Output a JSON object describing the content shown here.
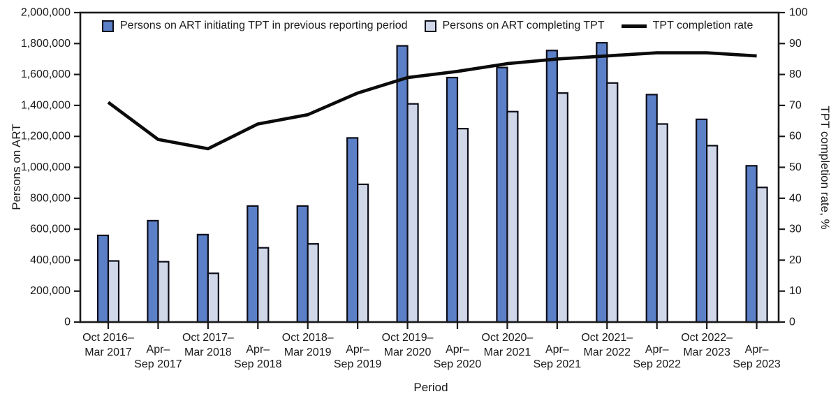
{
  "figure": {
    "xlabel": "Period",
    "ylabel_left": "Persons on ART",
    "ylabel_right": "TPT completion rate, %",
    "legend": {
      "initiating": "Persons on ART initiating TPT in previous reporting period",
      "completing": "Persons on ART completing TPT",
      "rate": "TPT completion rate"
    },
    "colors": {
      "bar_initiating": "#5b80c7",
      "bar_completing": "#cfd7e9",
      "bar_border": "#0d0d1a",
      "rate_line": "#0b0b0b",
      "axis": "#1a1a1a",
      "text": "#1a1a1a",
      "background": "#ffffff"
    }
  },
  "chart_data": {
    "type": "bar",
    "subtype": "grouped-bars-with-right-axis-line",
    "categories": [
      [
        "Oct 2016–",
        "Mar 2017"
      ],
      [
        "Apr–",
        "Sep 2017"
      ],
      [
        "Oct 2017–",
        "Mar 2018"
      ],
      [
        "Apr–",
        "Sep 2018"
      ],
      [
        "Oct 2018–",
        "Mar 2019"
      ],
      [
        "Apr–",
        "Sep 2019"
      ],
      [
        "Oct 2019–",
        "Mar 2020"
      ],
      [
        "Apr–",
        "Sep 2020"
      ],
      [
        "Oct 2020–",
        "Mar 2021"
      ],
      [
        "Apr–",
        "Sep 2021"
      ],
      [
        "Oct 2021–",
        "Mar 2022"
      ],
      [
        "Apr–",
        "Sep 2022"
      ],
      [
        "Oct 2022–",
        "Mar 2023"
      ],
      [
        "Apr–",
        "Sep 2023"
      ]
    ],
    "series": [
      {
        "name": "Persons on ART initiating TPT in previous reporting period",
        "axis": "left",
        "color_key": "bar_initiating",
        "values": [
          560000,
          655000,
          565000,
          750000,
          750000,
          1190000,
          1785000,
          1580000,
          1645000,
          1755000,
          1805000,
          1470000,
          1310000,
          1010000
        ]
      },
      {
        "name": "Persons on ART completing TPT",
        "axis": "left",
        "color_key": "bar_completing",
        "values": [
          395000,
          390000,
          315000,
          480000,
          505000,
          890000,
          1410000,
          1250000,
          1360000,
          1480000,
          1545000,
          1280000,
          1140000,
          870000
        ]
      }
    ],
    "line_series": {
      "name": "TPT completion rate",
      "axis": "right",
      "color_key": "rate_line",
      "values": [
        71,
        59,
        56,
        64,
        67,
        74,
        79,
        81,
        83.5,
        85,
        86,
        87,
        87,
        86
      ]
    },
    "title": "",
    "xlabel": "Period",
    "ylabel_left": "Persons on ART",
    "ylabel_right": "TPT completion rate, %",
    "ylim_left": [
      0,
      2000000
    ],
    "ylim_right": [
      0,
      100
    ],
    "ytick_step_left": 200000,
    "ytick_step_right": 10,
    "grid": false,
    "legend_position": "top-left-inside"
  }
}
